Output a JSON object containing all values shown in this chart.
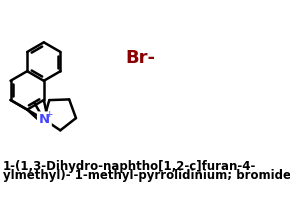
{
  "title_line1": "1-(1,3-Dihydro-naphtho[1,2-c]furan-4-",
  "title_line2": "ylmethyl)- 1-methyl-pyrrolidinium; bromide",
  "br_label": "Br-",
  "br_color": "#8B0000",
  "n_color": "#4444FF",
  "o_color": "#FF2200",
  "bond_color": "#000000",
  "bg_color": "#FFFFFF",
  "text_color": "#000000",
  "title_fontsize": 8.5,
  "br_fontsize": 13
}
